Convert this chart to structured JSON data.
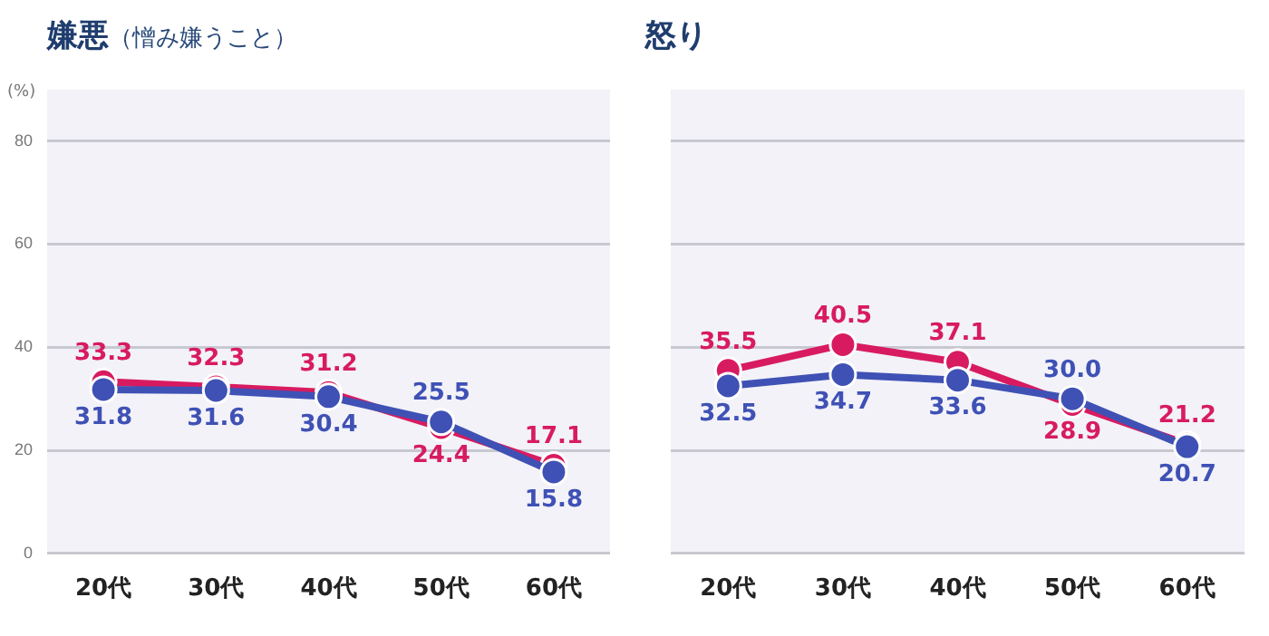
{
  "chart_data": [
    {
      "type": "line",
      "title": "嫌悪",
      "subtitle": "（憎み嫌うこと）",
      "ylabel": "(%)",
      "categories": [
        "20代",
        "30代",
        "40代",
        "50代",
        "60代"
      ],
      "series": [
        {
          "color": "#3f51b5",
          "values": [
            31.8,
            31.6,
            30.4,
            25.5,
            15.8
          ]
        },
        {
          "color": "#d81b60",
          "values": [
            33.3,
            32.3,
            31.2,
            24.4,
            17.1
          ]
        }
      ],
      "ylim": [
        0,
        90
      ],
      "yticks": [
        0,
        20,
        40,
        60,
        80
      ],
      "grid": "y",
      "marker": "circle",
      "data_labels": true
    },
    {
      "type": "line",
      "title": "怒り",
      "categories": [
        "20代",
        "30代",
        "40代",
        "50代",
        "60代"
      ],
      "series": [
        {
          "color": "#3f51b5",
          "values": [
            32.5,
            34.7,
            33.6,
            30.0,
            20.7
          ],
          "value_labels": [
            "32.5",
            "34.7",
            "33.6",
            "30.0",
            "20.7"
          ]
        },
        {
          "color": "#d81b60",
          "values": [
            35.5,
            40.5,
            37.1,
            28.9,
            21.2
          ]
        }
      ],
      "ylim": [
        0,
        90
      ],
      "yticks": [
        0,
        20,
        40,
        60,
        80
      ],
      "grid": "y",
      "marker": "circle",
      "data_labels": true,
      "tick_labels": "x"
    }
  ]
}
